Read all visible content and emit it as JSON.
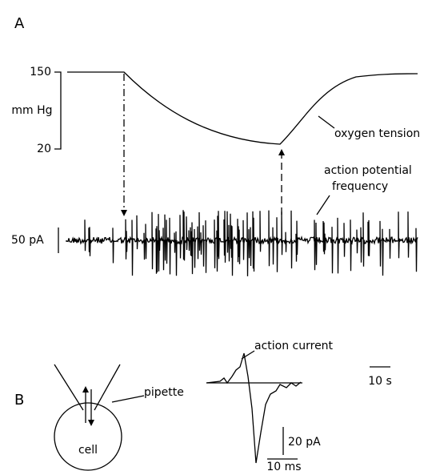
{
  "panel_a": {
    "label": "A",
    "y_top": "150",
    "y_bottom": "20",
    "y_unit": "mm Hg",
    "trace_label": "oxygen tension",
    "frequency_label": [
      "action potential",
      "frequency"
    ],
    "current_scale": "50 pA",
    "time_scale": "10 s"
  },
  "panel_b": {
    "label": "B",
    "cell": "cell",
    "pipette": "pipette",
    "trace_label": "action current",
    "current_scale": "20 pA",
    "time_scale": "10 ms"
  }
}
